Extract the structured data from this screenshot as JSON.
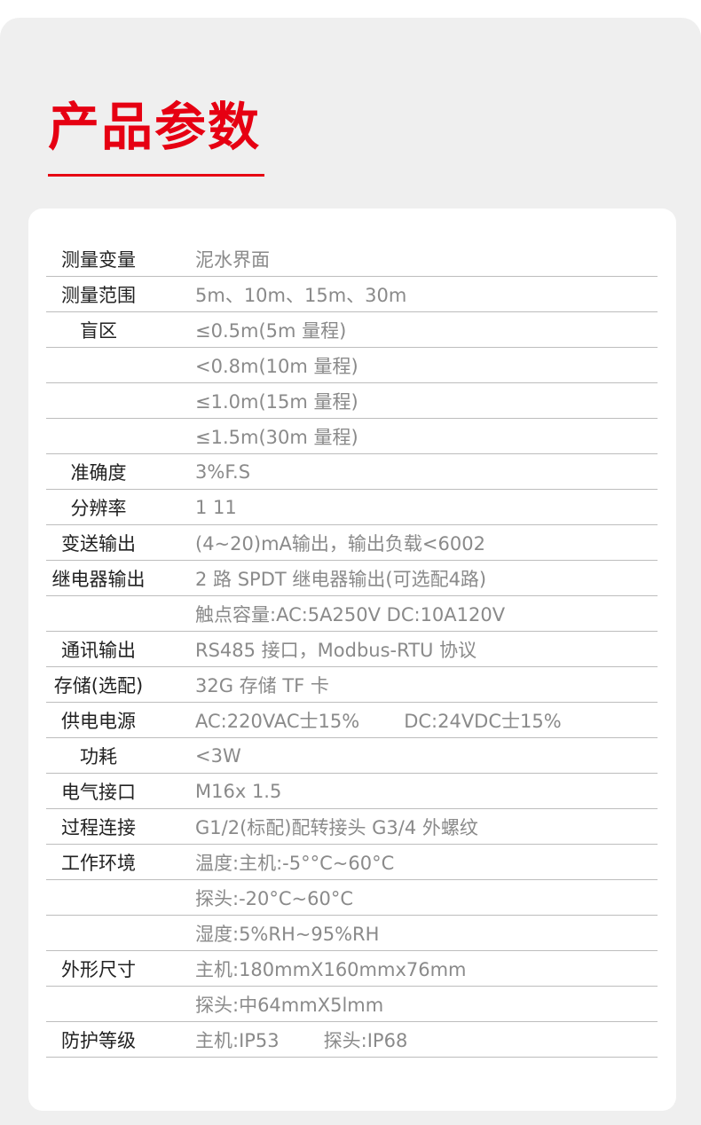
{
  "title": "产品参数",
  "colors": {
    "accent": "#e60012",
    "background": "#efefef"
  },
  "rows": [
    {
      "label": "测量变量",
      "value": "泥水界面"
    },
    {
      "label": "测量范围",
      "value": "5m、10m、15m、30m"
    },
    {
      "label": "盲区",
      "value": "≤0.5m(5m 量程)"
    },
    {
      "label": "",
      "value": "<0.8m(10m 量程)"
    },
    {
      "label": "",
      "value": "≤1.0m(15m 量程)"
    },
    {
      "label": "",
      "value": "≤1.5m(30m 量程)"
    },
    {
      "label": "准确度",
      "value": "3%F.S"
    },
    {
      "label": "分辨率",
      "value": "1 11"
    },
    {
      "label": "变送输出",
      "value": "(4~20)mA输出，输出负载<6002"
    },
    {
      "label": "继电器输出",
      "value": "2 路 SPDT 继电器输出(可选配4路)"
    },
    {
      "label": "",
      "value": "触点容量:AC:5A250V DC:10A120V"
    },
    {
      "label": "通讯输出",
      "value": "RS485 接口，Modbus-RTU 协议"
    },
    {
      "label": "存储(选配)",
      "value": "32G 存储 TF 卡"
    },
    {
      "label": "供电电源",
      "value": "AC:220VAC士15%",
      "value2": "DC:24VDC士15%"
    },
    {
      "label": "功耗",
      "value": "<3W"
    },
    {
      "label": "电气接口",
      "value": "M16x 1.5"
    },
    {
      "label": "过程连接",
      "value": "G1/2(标配)配转接头 G3/4 外螺纹"
    },
    {
      "label": "工作环境",
      "value": "温度:主机:-5°°C~60°C"
    },
    {
      "label": "",
      "value": "探头:-20°C~60°C"
    },
    {
      "label": "",
      "value": "湿度:5%RH~95%RH"
    },
    {
      "label": "外形尺寸",
      "value": "主机:180mmX160mmx76mm"
    },
    {
      "label": "",
      "value": "探头:中64mmX5lmm"
    },
    {
      "label": "防护等级",
      "value": "主机:IP53",
      "value2": "探头:IP68"
    }
  ]
}
